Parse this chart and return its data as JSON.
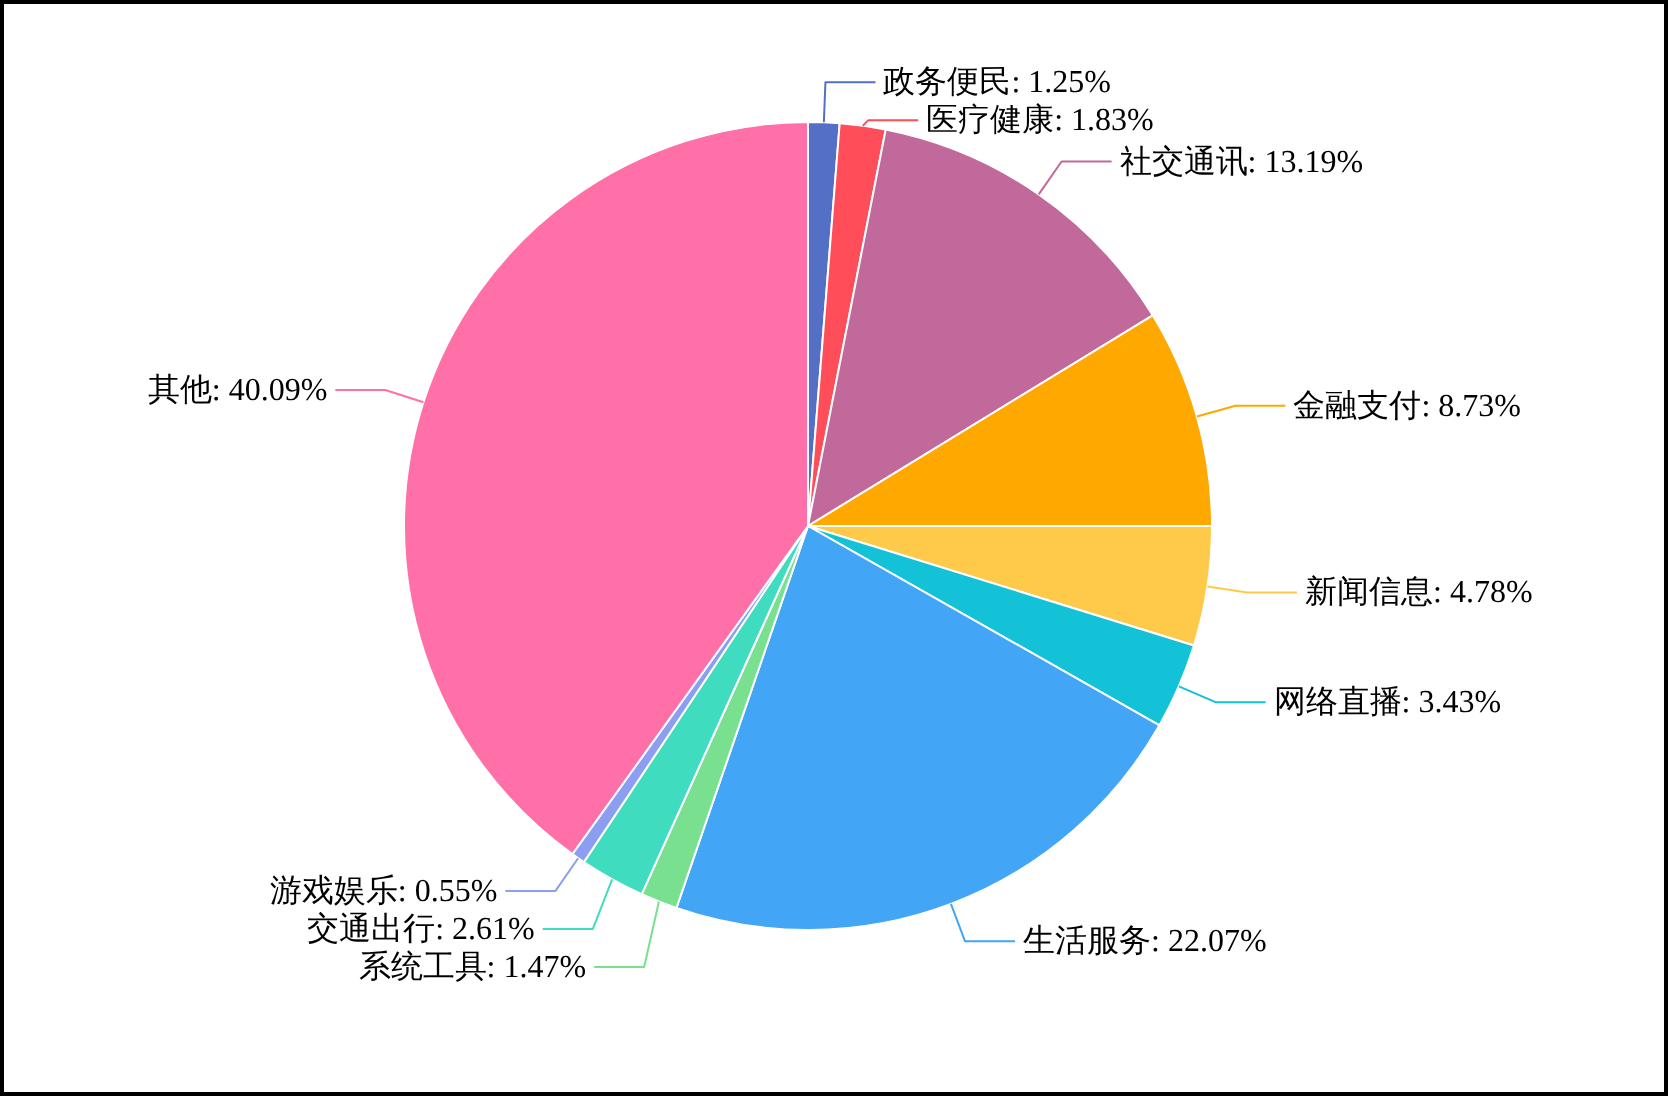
{
  "chart_data": {
    "type": "pie",
    "categories": [
      "政务便民",
      "医疗健康",
      "社交通讯",
      "金融支付",
      "新闻信息",
      "网络直播",
      "生活服务",
      "系统工具",
      "交通出行",
      "游戏娱乐",
      "其他"
    ],
    "values": [
      1.25,
      1.83,
      13.19,
      8.73,
      4.78,
      3.43,
      22.07,
      1.47,
      2.61,
      0.55,
      40.09
    ],
    "value_labels": [
      "1.25%",
      "1.83%",
      "13.19%",
      "8.73%",
      "4.78%",
      "3.43%",
      "22.07%",
      "1.47%",
      "2.61%",
      "0.55%",
      "40.09%"
    ],
    "colors": [
      "#5470c6",
      "#ff4d5a",
      "#c2699c",
      "#ffa800",
      "#ffca4a",
      "#14c2d8",
      "#42a5f5",
      "#78e08f",
      "#3fdcc0",
      "#8c9ef2",
      "#ff6fa8"
    ]
  }
}
